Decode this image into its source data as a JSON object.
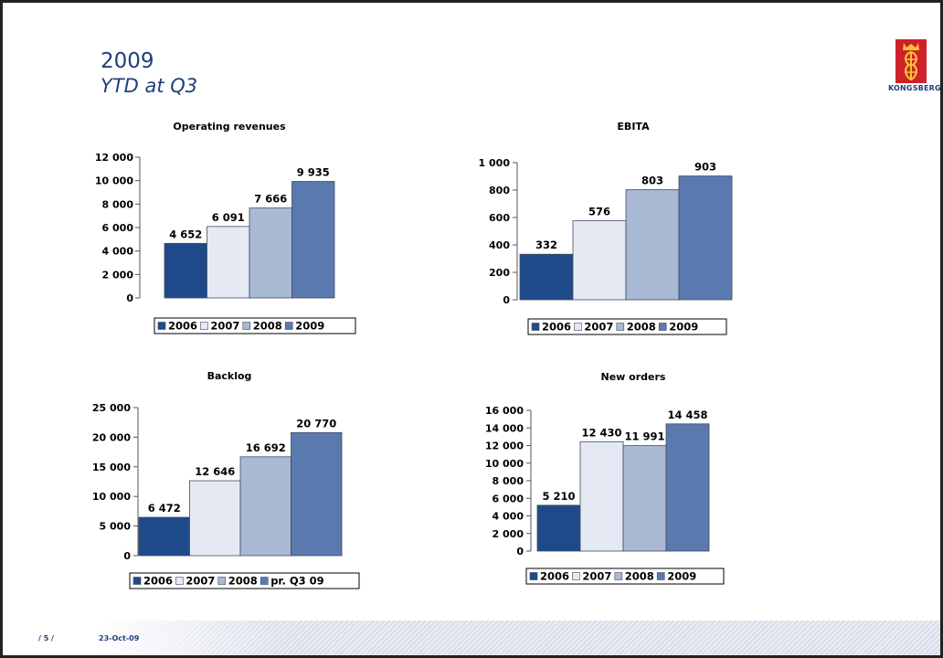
{
  "header": {
    "title": "2009",
    "subtitle": "YTD at Q3"
  },
  "logo": {
    "text": "KONGSBERG"
  },
  "footer": {
    "page": "/ 5 /",
    "date": "23-Oct-09"
  },
  "colors": [
    "#1f4a8a",
    "#e4e9f4",
    "#a9b8d3",
    "#5a7aaf"
  ],
  "chart_data": [
    {
      "type": "bar",
      "title": "Operating revenues",
      "categories": [
        "2006",
        "2007",
        "2008",
        "2009"
      ],
      "values": [
        4652,
        6091,
        7666,
        9935
      ],
      "value_labels": [
        "4 652",
        "6 091",
        "7 666",
        "9 935"
      ],
      "legend": [
        "2006",
        "2007",
        "2008",
        "2009"
      ],
      "ylim": [
        0,
        12000
      ],
      "yticks": [
        0,
        2000,
        4000,
        6000,
        8000,
        10000,
        12000
      ],
      "ytick_labels": [
        "0",
        "2 000",
        "4 000",
        "6 000",
        "8 000",
        "10 000",
        "12 000"
      ]
    },
    {
      "type": "bar",
      "title": "EBITA",
      "categories": [
        "2006",
        "2007",
        "2008",
        "2009"
      ],
      "values": [
        332,
        576,
        803,
        903
      ],
      "value_labels": [
        "332",
        "576",
        "803",
        "903"
      ],
      "legend": [
        "2006",
        "2007",
        "2008",
        "2009"
      ],
      "ylim": [
        0,
        1000
      ],
      "yticks": [
        0,
        200,
        400,
        600,
        800,
        1000
      ],
      "ytick_labels": [
        "0",
        "200",
        "400",
        "600",
        "800",
        "1 000"
      ]
    },
    {
      "type": "bar",
      "title": "Backlog",
      "categories": [
        "2006",
        "2007",
        "2008",
        "pr. Q3 09"
      ],
      "values": [
        6472,
        12646,
        16692,
        20770
      ],
      "value_labels": [
        "6 472",
        "12 646",
        "16 692",
        "20 770"
      ],
      "legend": [
        "2006",
        "2007",
        "2008",
        "pr. Q3 09"
      ],
      "ylim": [
        0,
        25000
      ],
      "yticks": [
        0,
        5000,
        10000,
        15000,
        20000,
        25000
      ],
      "ytick_labels": [
        "0",
        "5 000",
        "10 000",
        "15 000",
        "20 000",
        "25 000"
      ]
    },
    {
      "type": "bar",
      "title": "New orders",
      "categories": [
        "2006",
        "2007",
        "2008",
        "2009"
      ],
      "values": [
        5210,
        12430,
        11991,
        14458
      ],
      "value_labels": [
        "5 210",
        "12 430",
        "11 991",
        "14 458"
      ],
      "legend": [
        "2006",
        "2007",
        "2008",
        "2009"
      ],
      "ylim": [
        0,
        16000
      ],
      "yticks": [
        0,
        2000,
        4000,
        6000,
        8000,
        10000,
        12000,
        14000,
        16000
      ],
      "ytick_labels": [
        "0",
        "2 000",
        "4 000",
        "6 000",
        "8 000",
        "10 000",
        "12 000",
        "14 000",
        "16 000"
      ]
    }
  ]
}
